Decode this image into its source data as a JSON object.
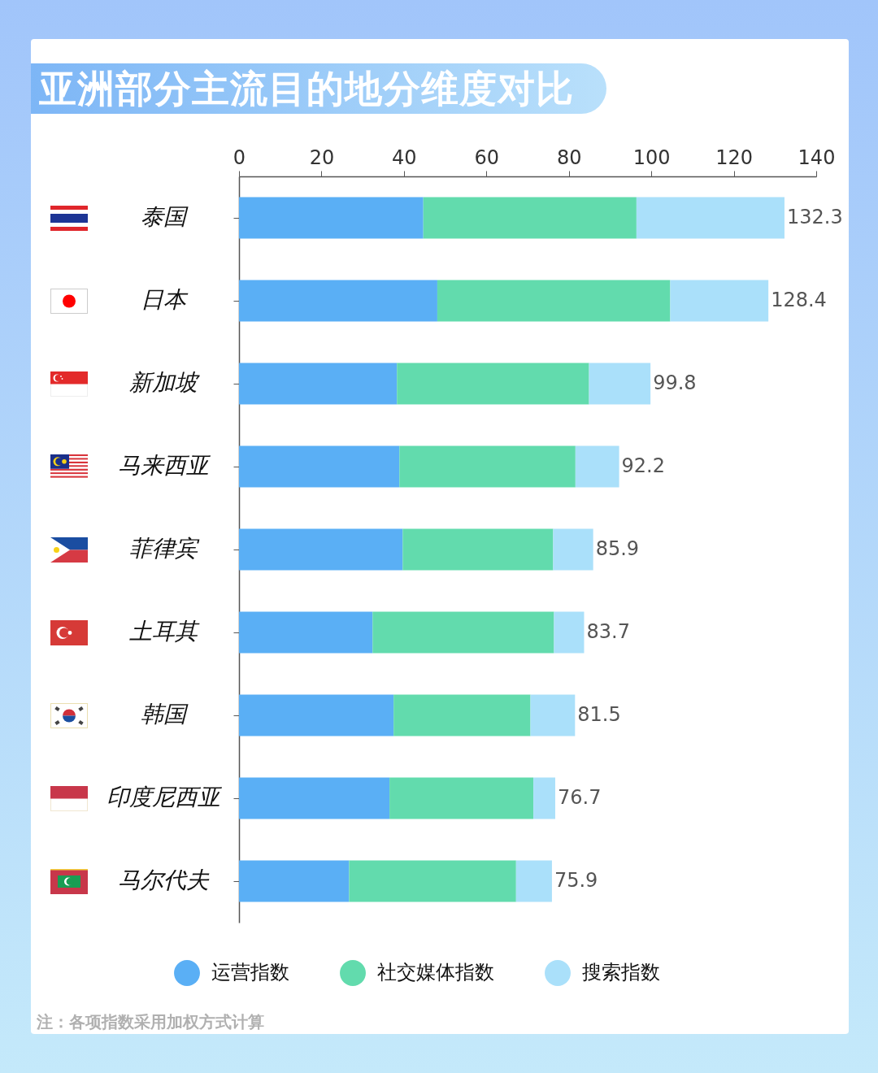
{
  "chart_data": {
    "type": "bar",
    "orientation": "horizontal",
    "stacked": true,
    "title": "亚洲部分主流目的地分维度对比",
    "categories": [
      "泰国",
      "日本",
      "新加坡",
      "马来西亚",
      "菲律宾",
      "土耳其",
      "韩国",
      "印度尼西亚",
      "马尔代夫"
    ],
    "series": [
      {
        "name": "运营指数",
        "color": "#5aaff5",
        "values": [
          44.7,
          48.1,
          38.3,
          38.9,
          39.7,
          32.4,
          37.5,
          36.5,
          26.7
        ]
      },
      {
        "name": "社交媒体指数",
        "color": "#62dbad",
        "values": [
          51.7,
          56.5,
          46.6,
          42.7,
          36.5,
          44.0,
          33.2,
          34.9,
          40.5
        ]
      },
      {
        "name": "搜索指数",
        "color": "#aae0fa",
        "values": [
          35.9,
          23.8,
          14.9,
          10.6,
          9.7,
          7.3,
          10.8,
          5.3,
          8.7
        ]
      }
    ],
    "totals": [
      "132.3",
      "128.4",
      "99.8",
      "92.2",
      "85.9",
      "83.7",
      "81.5",
      "76.7",
      "75.9"
    ],
    "xlim": [
      0,
      140
    ],
    "xticks": [
      0,
      20,
      40,
      60,
      80,
      100,
      120,
      140
    ],
    "legend": "bottom",
    "grid": false,
    "annotations": [
      "注：各项指数采用加权方式计算"
    ]
  }
}
